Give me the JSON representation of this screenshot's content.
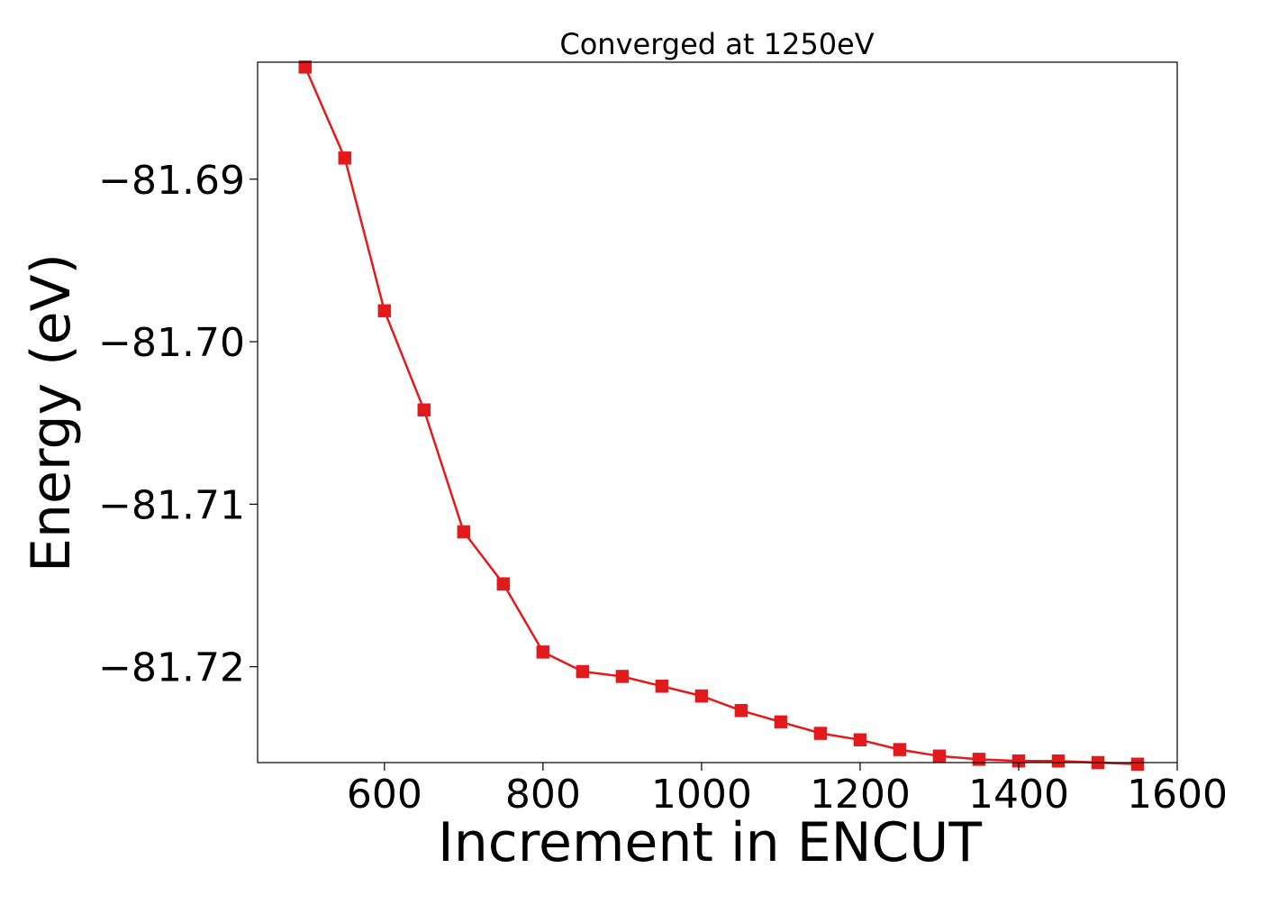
{
  "chart_data": {
    "type": "line",
    "title": "Converged at 1250eV",
    "xlabel": "Increment in ENCUT",
    "ylabel": "Energy (eV)",
    "xlim": [
      440,
      1600
    ],
    "ylim": [
      -81.7259,
      -81.6828
    ],
    "xticks": [
      600,
      800,
      1000,
      1200,
      1400,
      1600
    ],
    "yticks": [
      -81.69,
      -81.7,
      -81.71,
      -81.72
    ],
    "ytick_labels": [
      "−81.69",
      "−81.70",
      "−81.71",
      "−81.72"
    ],
    "grid": false,
    "series": [
      {
        "color": "#e31a1c",
        "marker": "square",
        "x": [
          500,
          550,
          600,
          650,
          700,
          750,
          800,
          850,
          900,
          950,
          1000,
          1050,
          1100,
          1150,
          1200,
          1250,
          1300,
          1350,
          1400,
          1450,
          1500,
          1550
        ],
        "y": [
          -81.6831,
          -81.6887,
          -81.6981,
          -81.7042,
          -81.7117,
          -81.7149,
          -81.7191,
          -81.7203,
          -81.7206,
          -81.7212,
          -81.7218,
          -81.7227,
          -81.7234,
          -81.7241,
          -81.7245,
          -81.7251,
          -81.7255,
          -81.7257,
          -81.7258,
          -81.7258,
          -81.7259,
          -81.726
        ]
      }
    ]
  }
}
